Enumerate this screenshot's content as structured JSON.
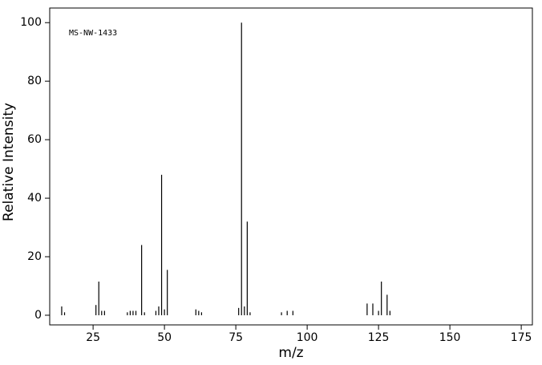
{
  "chart_data": {
    "type": "bar",
    "annotation": "MS-NW-1433",
    "x_label": "m/z",
    "y_label": "Relative Intensity",
    "x": [
      14,
      15,
      26,
      27,
      28,
      29,
      37,
      38,
      39,
      40,
      42,
      43,
      47,
      48,
      49,
      50,
      51,
      61,
      62,
      63,
      76,
      77,
      78,
      79,
      80,
      91,
      93,
      95,
      121,
      123,
      125,
      126,
      128,
      129
    ],
    "values": [
      3,
      1,
      3.5,
      11.5,
      1.5,
      1.5,
      1,
      1.5,
      1.5,
      1.5,
      24,
      1,
      1.5,
      3,
      48,
      2,
      15.5,
      2,
      1.5,
      1,
      2.5,
      100,
      3,
      32,
      1,
      1,
      1.5,
      1.5,
      4,
      4,
      1.5,
      11.5,
      7,
      1.5
    ],
    "color": "#000000",
    "xlim": [
      9.8,
      178.9
    ],
    "xticks": [
      25,
      50,
      75,
      100,
      125,
      150,
      175
    ],
    "ylim": [
      -3.3,
      105
    ],
    "yticks": [
      0,
      20,
      40,
      60,
      80,
      100
    ]
  }
}
